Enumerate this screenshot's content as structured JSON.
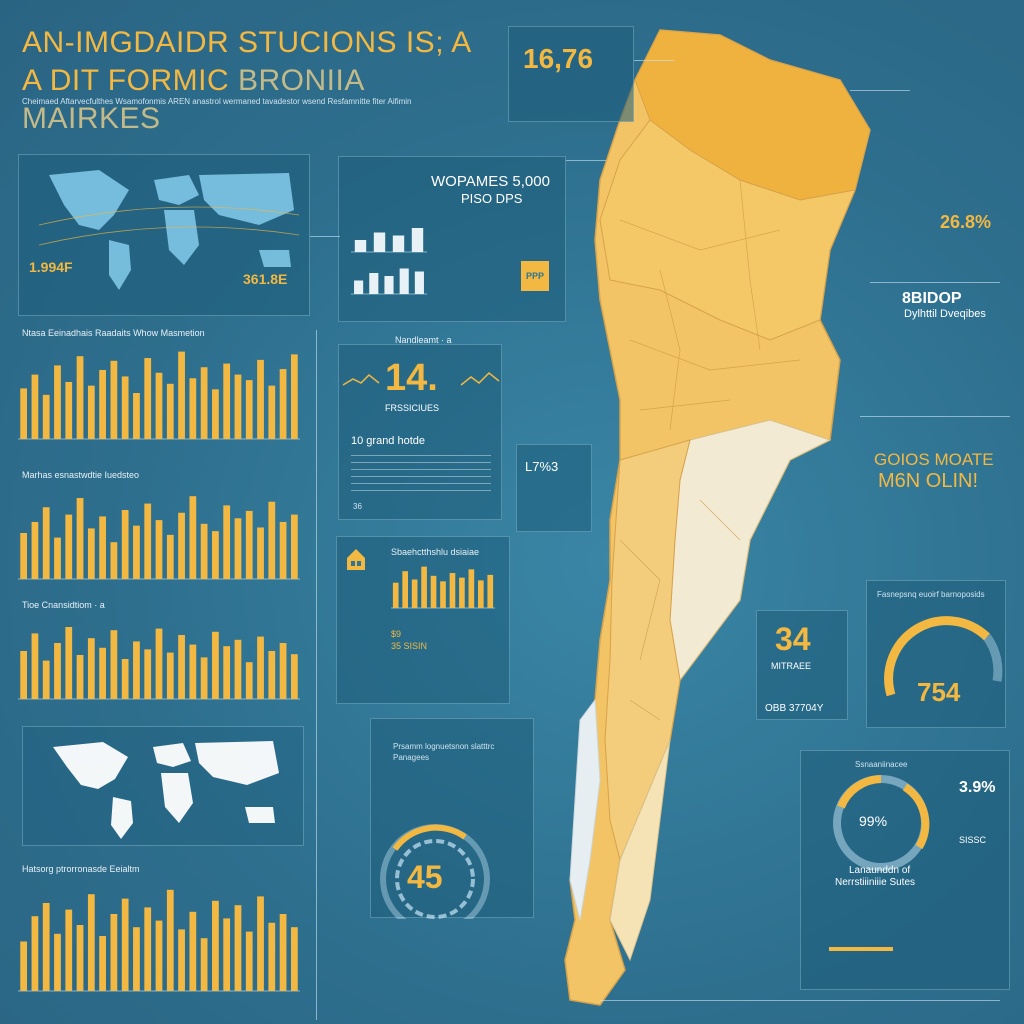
{
  "header": {
    "title_line1": "AN-IMGDAIDR STUCIONS IS; A",
    "title_line2": "A DIT FORMIC",
    "title_line2_faded": "BRONIIA MAIRKES",
    "intro": "Cheimaed Aftarvecfulthes Wsamofonmis AREN anastrol wermaned tavadestor wsend Resfamnitte fiter Aifimin"
  },
  "stats": {
    "top_stat": "16,76",
    "worldmap_left": "1.994F",
    "worldmap_right": "361.8E",
    "wopanes_line1": "WOPAMES 5,000",
    "wopanes_line2": "PISO DPS",
    "big14": "14.",
    "big14_label": "FRSSICIUES",
    "ten_grand": "10 grand hotde",
    "mid_small": "L7%3",
    "mid_small2": "36",
    "right_pct": "26.8%",
    "right_heading1": "8BIDOP",
    "right_heading2": "Dylhttil Dveqibes",
    "gold_line1": "GOIOS MOATE",
    "gold_line2": "M6N OLIN!",
    "thirty_four": "34",
    "thirty_four_label": "MITRAEE",
    "thirty_four_sub": "OBB 37704Y",
    "gauge_right_title": "Fasnepsnq euoirf barnoposids",
    "gauge_right_value": "754",
    "ring_center": "45",
    "donut_pct_a": "3.9%",
    "donut_center": "99%",
    "donut_caption1": "Lanaunddn of",
    "donut_caption2": "Nerrstiiiniiie Sutes",
    "donut_side": "SISSC",
    "b_label_1": "$9",
    "b_label_2": "35 SISIN",
    "ppp": "PPP"
  },
  "charts": {
    "c1_title": "Ntasa Eeinadhais Raadaits Whow Masmetion",
    "c2_title": "Marhas esnastwdtie Iuedsteo",
    "c3_title": "Tioe Cnansidtiom · a",
    "c4_title": "Hatsorg ptrorronasde Eeialtm",
    "c5_title": "Sbaehctthshlu dsiaiae",
    "c14_title": "Nandleamt · a",
    "ring_title": "Prsamm lognuetsnon slatttrc Panagees",
    "donut_title": "Ssnaaniinacee"
  },
  "chart_data": [
    {
      "type": "bar",
      "title": "Ntasa Eeinadhais Raadaits Whow Masmetion",
      "values": [
        55,
        70,
        48,
        80,
        62,
        90,
        58,
        75,
        85,
        68,
        50,
        88,
        72,
        60,
        95,
        66,
        78,
        54,
        82,
        70,
        64,
        86,
        58,
        76,
        92
      ]
    },
    {
      "type": "bar",
      "title": "Marhas esnastwdtie Iuedsteo",
      "values": [
        50,
        62,
        78,
        45,
        70,
        88,
        55,
        68,
        40,
        75,
        58,
        82,
        64,
        48,
        72,
        90,
        60,
        52,
        80,
        66,
        74,
        56,
        84,
        62,
        70
      ]
    },
    {
      "type": "bar",
      "title": "Tioe Cnansidtiom · a",
      "values": [
        60,
        82,
        48,
        70,
        90,
        55,
        76,
        64,
        86,
        50,
        72,
        62,
        88,
        58,
        80,
        68,
        52,
        84,
        66,
        74,
        46,
        78,
        60,
        70,
        56
      ]
    },
    {
      "type": "bar",
      "title": "Hatsorg ptrorronasde Eeialtm",
      "values": [
        45,
        68,
        80,
        52,
        74,
        60,
        88,
        50,
        70,
        84,
        58,
        76,
        64,
        92,
        56,
        72,
        48,
        82,
        66,
        78,
        54,
        86,
        62,
        70,
        58
      ]
    },
    {
      "type": "bar",
      "values": [
        40,
        65,
        55,
        80
      ]
    },
    {
      "type": "bar",
      "values": [
        45,
        70,
        60,
        85,
        75
      ]
    },
    {
      "type": "bar",
      "title": "Sbaehctthshlu dsiaiae",
      "values": [
        55,
        80,
        62,
        90,
        70,
        58,
        76,
        66,
        84,
        60,
        72
      ]
    }
  ],
  "colors": {
    "accent": "#f2b842",
    "background": "#2f7595",
    "map_light": "#f6d99a",
    "map_pale": "#f4ead0"
  }
}
